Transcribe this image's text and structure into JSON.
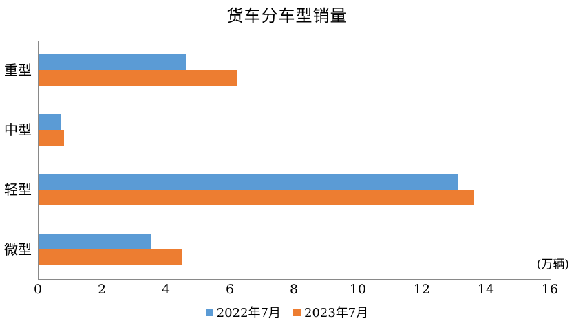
{
  "title": "货车分车型销量",
  "unit_label": "(万辆)",
  "colors": {
    "series_2022": "#5B9BD5",
    "series_2023": "#ED7D31",
    "axis": "#898989",
    "text": "#000000",
    "background": "#FFFFFF"
  },
  "chart_data": {
    "type": "bar",
    "orientation": "horizontal",
    "title": "货车分车型销量",
    "xlabel": "(万辆)",
    "ylabel": "",
    "categories": [
      "重型",
      "中型",
      "轻型",
      "微型"
    ],
    "series": [
      {
        "name": "2022年7月",
        "color": "#5B9BD5",
        "values": [
          4.6,
          0.7,
          13.1,
          3.5
        ]
      },
      {
        "name": "2023年7月",
        "color": "#ED7D31",
        "values": [
          6.2,
          0.8,
          13.6,
          4.5
        ]
      }
    ],
    "xlim": [
      0,
      16
    ],
    "xticks": [
      0,
      2,
      4,
      6,
      8,
      10,
      12,
      14,
      16
    ],
    "grid": false,
    "legend_position": "bottom"
  }
}
